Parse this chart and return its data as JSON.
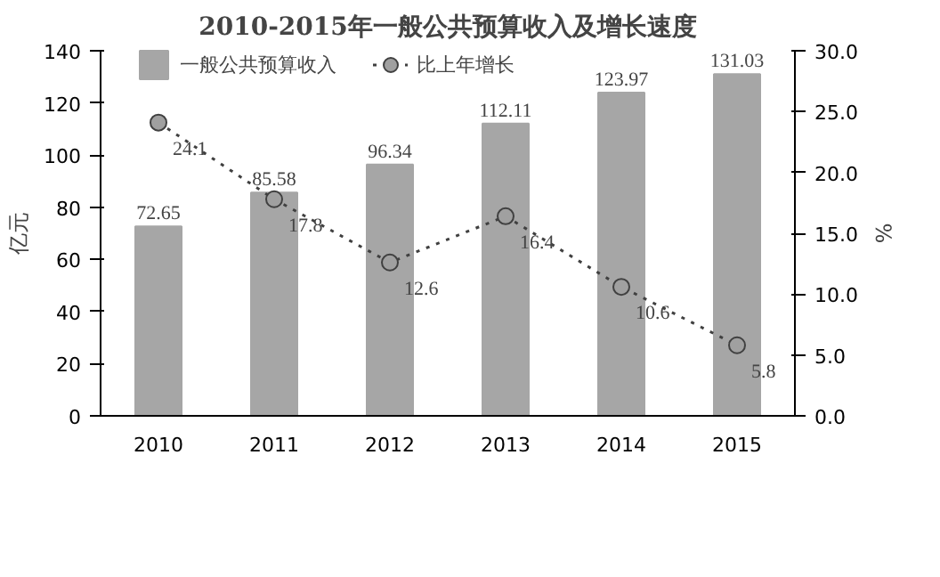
{
  "chart_data": {
    "type": "bar",
    "title": "2010-2015年一般公共预算收入及增长速度",
    "ylabel": "亿元",
    "y2label": "%",
    "categories": [
      "2010",
      "2011",
      "2012",
      "2013",
      "2014",
      "2015"
    ],
    "series": [
      {
        "name": "一般公共预算收入",
        "color": "#a6a6a6",
        "values": [
          72.65,
          85.58,
          96.34,
          112.11,
          123.97,
          131.03
        ]
      },
      {
        "name": "比上年增长",
        "type": "line",
        "axis": "y2",
        "color": "#404040",
        "marker": "circle",
        "line_style": "dotted",
        "values": [
          24.1,
          17.8,
          12.6,
          16.4,
          10.6,
          5.8
        ]
      }
    ],
    "ylim": [
      0,
      140
    ],
    "yticks": [
      0,
      20,
      40,
      60,
      80,
      100,
      120,
      140
    ],
    "y2lim": [
      0,
      30
    ],
    "y2ticks": [
      {
        "value": 0,
        "label": "0.0"
      },
      {
        "value": 5,
        "label": "5.0"
      },
      {
        "value": 10,
        "label": "10.0"
      },
      {
        "value": 15,
        "label": "15.0"
      },
      {
        "value": 20,
        "label": "20.0"
      },
      {
        "value": 25,
        "label": "25.0"
      },
      {
        "value": 30,
        "label": "30.0"
      }
    ],
    "data_labels": true,
    "legend": "top",
    "grid": false
  }
}
